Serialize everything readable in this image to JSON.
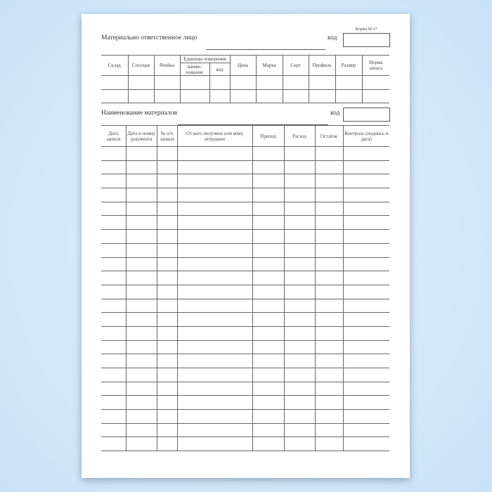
{
  "form_label": "Форма М-17",
  "responsible_person": {
    "label": "Материально ответственное лицо",
    "value": "",
    "code_label": "код",
    "code_value": ""
  },
  "table1": {
    "headers": [
      "Склад",
      "Стеллаж",
      "Ячейка",
      "Цена",
      "Марка",
      "Сорт",
      "Профиль",
      "Размер",
      "Норма запаса"
    ],
    "units_header": "Единицы измерения",
    "units_sub": [
      "наиме-нование",
      "код"
    ],
    "rows": [
      [
        "",
        "",
        "",
        "",
        "",
        "",
        "",
        "",
        "",
        "",
        ""
      ],
      [
        "",
        "",
        "",
        "",
        "",
        "",
        "",
        "",
        "",
        "",
        ""
      ]
    ]
  },
  "material_name": {
    "label": "Наименование материалов",
    "value": "",
    "code_label": "код",
    "code_value": ""
  },
  "table2": {
    "headers": [
      "Дата записи",
      "Дата и номер документа",
      "№ п/п записи",
      "От кого получено или кому отпущено",
      "Приход",
      "Расход",
      "Остаток",
      "Контроль (подпись и дата)"
    ]
  },
  "colors": {
    "background": "#d3e8fa",
    "page": "#ffffff",
    "lines": "#666666"
  }
}
